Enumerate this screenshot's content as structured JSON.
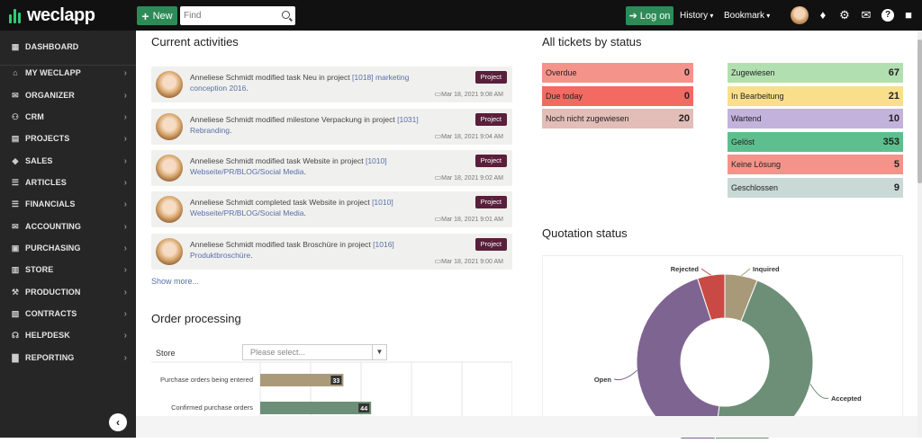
{
  "app": {
    "name": "weclapp"
  },
  "topbar": {
    "new_label": "New",
    "find_placeholder": "Find",
    "login_label": "Log on",
    "history_label": "History",
    "bookmark_label": "Bookmark"
  },
  "sidebar": {
    "items": [
      {
        "label": "DASHBOARD",
        "icon": "dashboard-icon",
        "glyph": "▦"
      },
      {
        "label": "MY WECLAPP",
        "icon": "home-icon",
        "glyph": "⌂"
      },
      {
        "label": "ORGANIZER",
        "icon": "envelope-icon",
        "glyph": "✉"
      },
      {
        "label": "CRM",
        "icon": "users-icon",
        "glyph": "⚇"
      },
      {
        "label": "PROJECTS",
        "icon": "briefcase-icon",
        "glyph": "▤"
      },
      {
        "label": "SALES",
        "icon": "tag-icon",
        "glyph": "◆"
      },
      {
        "label": "ARTICLES",
        "icon": "list-icon",
        "glyph": "☰"
      },
      {
        "label": "FINANCIALS",
        "icon": "list-icon",
        "glyph": "☰"
      },
      {
        "label": "ACCOUNTING",
        "icon": "envelope-icon",
        "glyph": "✉"
      },
      {
        "label": "PURCHASING",
        "icon": "cart-icon",
        "glyph": "▣"
      },
      {
        "label": "STORE",
        "icon": "store-icon",
        "glyph": "▥"
      },
      {
        "label": "PRODUCTION",
        "icon": "wrench-icon",
        "glyph": "⚒"
      },
      {
        "label": "CONTRACTS",
        "icon": "file-icon",
        "glyph": "▧"
      },
      {
        "label": "HELPDESK",
        "icon": "headset-icon",
        "glyph": "☊"
      },
      {
        "label": "REPORTING",
        "icon": "bar-chart-icon",
        "glyph": "▇"
      }
    ]
  },
  "activities": {
    "title": "Current activities",
    "show_more": "Show more...",
    "tag": "Project",
    "items": [
      {
        "text": "Anneliese Schmidt modified task Neu in project ",
        "ref": "[1018] marketing conception 2016",
        "date": "Mar 18, 2021 9:08 AM"
      },
      {
        "text": "Anneliese Schmidt modified milestone Verpackung in project ",
        "ref": "[1031] Rebranding",
        "date": "Mar 18, 2021 9:04 AM"
      },
      {
        "text": "Anneliese Schmidt modified task Website in project ",
        "ref": "[1010] Webseite/PR/BLOG/Social Media",
        "date": "Mar 18, 2021 9:02 AM"
      },
      {
        "text": "Anneliese Schmidt completed task Website in project ",
        "ref": "[1010] Webseite/PR/BLOG/Social Media",
        "date": "Mar 18, 2021 9:01 AM"
      },
      {
        "text": "Anneliese Schmidt modified task Broschüre in project ",
        "ref": "[1016] Produktbroschüre",
        "date": "Mar 18, 2021 9:00 AM"
      }
    ]
  },
  "order": {
    "title": "Order processing",
    "store_label": "Store",
    "store_placeholder": "Please select...",
    "colors": {
      "entered": "#ab9a7a",
      "confirmed": "#6e8f77"
    }
  },
  "tickets": {
    "title": "All tickets by status",
    "left": [
      {
        "label": "Overdue",
        "count": "0",
        "color": "#f4938a"
      },
      {
        "label": "Due today",
        "count": "0",
        "color": "#f26a62"
      },
      {
        "label": "Noch nicht zugewiesen",
        "count": "20",
        "color": "#e3bdb8"
      }
    ],
    "right": [
      {
        "label": "Zugewiesen",
        "count": "67",
        "color": "#b2dfaf"
      },
      {
        "label": "In Bearbeitung",
        "count": "21",
        "color": "#f9df8c"
      },
      {
        "label": "Wartend",
        "count": "10",
        "color": "#c3b3dc"
      },
      {
        "label": "Gelöst",
        "count": "353",
        "color": "#5dbf8e"
      },
      {
        "label": "Keine Lösung",
        "count": "5",
        "color": "#f4938a"
      },
      {
        "label": "Geschlossen",
        "count": "9",
        "color": "#c9d9d5"
      }
    ]
  },
  "quotation": {
    "title": "Quotation status"
  },
  "chart_data": [
    {
      "type": "bar",
      "orientation": "horizontal",
      "categories": [
        "Purchase orders being entered",
        "Confirmed purchase orders"
      ],
      "values": [
        33,
        44
      ],
      "xlim": [
        0,
        100
      ]
    },
    {
      "type": "pie",
      "donut": true,
      "labels": [
        "Inquired",
        "Accepted",
        "Open",
        "Rejected"
      ],
      "values": [
        6,
        46,
        43,
        5
      ],
      "colors": [
        "#a89a78",
        "#6e8f77",
        "#7e6491",
        "#c94a45"
      ]
    }
  ]
}
